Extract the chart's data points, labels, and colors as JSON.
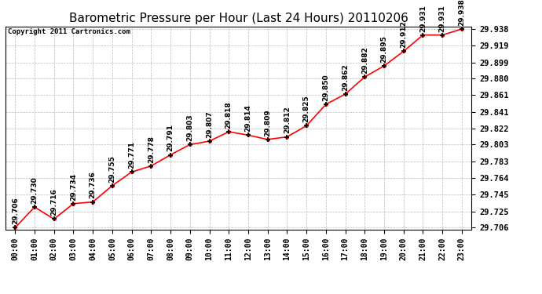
{
  "title": "Barometric Pressure per Hour (Last 24 Hours) 20110206",
  "copyright": "Copyright 2011 Cartronics.com",
  "hours": [
    "00:00",
    "01:00",
    "02:00",
    "03:00",
    "04:00",
    "05:00",
    "06:00",
    "07:00",
    "08:00",
    "09:00",
    "10:00",
    "11:00",
    "12:00",
    "13:00",
    "14:00",
    "15:00",
    "16:00",
    "17:00",
    "18:00",
    "19:00",
    "20:00",
    "21:00",
    "22:00",
    "23:00"
  ],
  "values": [
    29.706,
    29.73,
    29.716,
    29.734,
    29.736,
    29.755,
    29.771,
    29.778,
    29.791,
    29.803,
    29.807,
    29.818,
    29.814,
    29.809,
    29.812,
    29.825,
    29.85,
    29.862,
    29.882,
    29.895,
    29.912,
    29.931,
    29.931,
    29.938
  ],
  "ylim_min": 29.706,
  "ylim_max": 29.938,
  "line_color": "red",
  "marker_color": "black",
  "bg_color": "white",
  "grid_color": "#bbbbbb",
  "title_fontsize": 11,
  "copyright_fontsize": 6.5,
  "label_fontsize": 6.5,
  "yticks": [
    29.706,
    29.725,
    29.745,
    29.764,
    29.783,
    29.803,
    29.822,
    29.841,
    29.861,
    29.88,
    29.899,
    29.919,
    29.938
  ]
}
